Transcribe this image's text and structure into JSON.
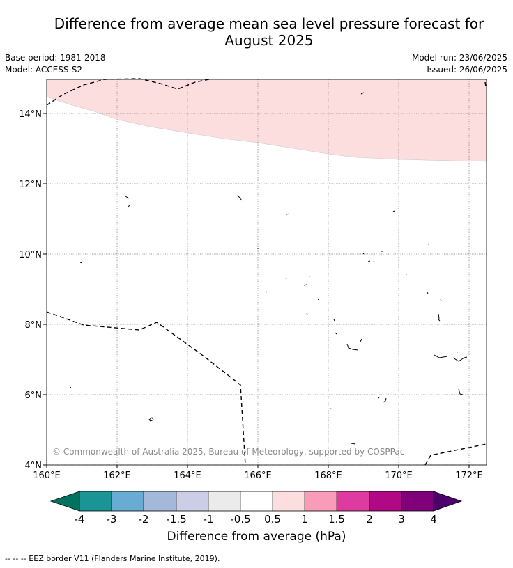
{
  "title": "Difference from average mean sea level pressure forecast for August 2025",
  "meta": {
    "base_period": "Base period: 1981-2018",
    "model": "Model: ACCESS-S2",
    "model_run": "Model run: 23/06/2025",
    "issued": "Issued: 26/06/2025"
  },
  "map": {
    "x_ticks": [
      "160°E",
      "162°E",
      "164°E",
      "166°E",
      "168°E",
      "170°E",
      "172°E"
    ],
    "y_ticks": [
      "4°N",
      "6°N",
      "8°N",
      "10°N",
      "12°N",
      "14°N"
    ],
    "copyright": "© Commonwealth of Australia 2025, Bureau of Meteorology, supported by COSPPac",
    "anomaly_region": {
      "label": "0.5 to 1 hPa",
      "color": "#fddede"
    }
  },
  "colorbar": {
    "title": "Difference from average (hPa)",
    "labels": [
      "-4",
      "-3",
      "-2",
      "-1.5",
      "-1",
      "-0.5",
      "0.5",
      "1",
      "1.5",
      "2",
      "3",
      "4"
    ],
    "colors": [
      "#1b9495",
      "#68acd4",
      "#a4b9da",
      "#cccde6",
      "#ebebeb",
      "#ffffff",
      "#fddede",
      "#f99cb9",
      "#dd3ba0",
      "#b10885",
      "#7f0078"
    ],
    "under_color": "#00735f",
    "over_color": "#4b006b"
  },
  "legend": {
    "eez": "--  --  -- EEZ border V11 (Flanders Marine Institute, 2019)."
  }
}
